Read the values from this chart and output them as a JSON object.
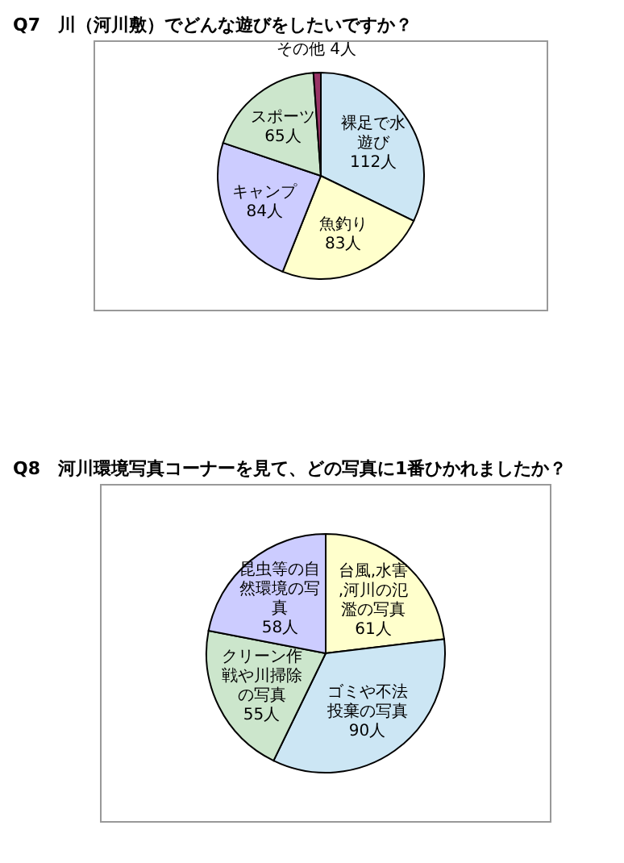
{
  "chart_data": [
    {
      "type": "pie",
      "title": "Q7　川（河川敷）でどんな遊びをしたいですか？",
      "categories": [
        "裸足で水遊び",
        "魚釣り",
        "キャンプ",
        "スポーツ",
        "その他"
      ],
      "values": [
        112,
        83,
        84,
        65,
        4
      ],
      "value_labels": [
        "112人",
        "83人",
        "84人",
        "65人",
        "4人"
      ],
      "colors": [
        "#cce6f4",
        "#ffffcc",
        "#ccccff",
        "#cce6cc",
        "#993366"
      ],
      "legend": false
    },
    {
      "type": "pie",
      "title": "Q8　河川環境写真コーナーを見て、どの写真に1番ひかれましたか？",
      "categories": [
        "台風,水害,河川の氾濫の写真",
        "ゴミや不法投棄の写真",
        "クリーン作戦や川掃除の写真",
        "昆虫等の自然環境の写真"
      ],
      "values": [
        61,
        90,
        55,
        58
      ],
      "value_labels": [
        "61人",
        "90人",
        "55人",
        "58人"
      ],
      "colors": [
        "#ffffcc",
        "#cce6f4",
        "#cce6cc",
        "#ccccff"
      ],
      "legend": false
    }
  ]
}
